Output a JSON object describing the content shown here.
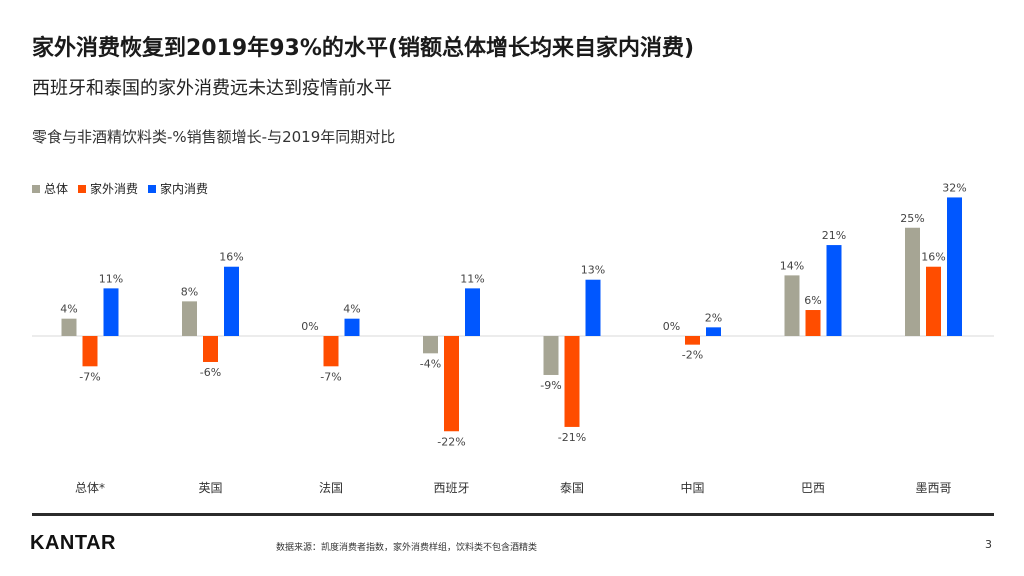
{
  "title": "家外消费恢复到2019年93%的水平(销额总体增长均来自家内消费)",
  "subtitle": "西班牙和泰国的家外消费远未达到疫情前水平",
  "footer": {
    "logo": "KANTAR",
    "source": "数据来源：凯度消费者指数，家外消费样组，饮料类不包含酒精类",
    "page": "3"
  },
  "chart_data": {
    "type": "bar",
    "title": "零食与非酒精饮料类-%销售额增长-与2019年同期对比",
    "legend_position": "top-left",
    "categories": [
      "总体*",
      "英国",
      "法国",
      "西班牙",
      "泰国",
      "中国",
      "巴西",
      "墨西哥"
    ],
    "series": [
      {
        "name": "总体",
        "color": "#a6a594",
        "values": [
          4,
          8,
          0,
          -4,
          -9,
          0,
          14,
          25
        ]
      },
      {
        "name": "家外消费",
        "color": "#ff4d00",
        "values": [
          -7,
          -6,
          -7,
          -22,
          -21,
          -2,
          6,
          16
        ]
      },
      {
        "name": "家内消费",
        "color": "#0057ff",
        "values": [
          11,
          16,
          4,
          11,
          13,
          2,
          21,
          32
        ]
      }
    ],
    "value_suffix": "%",
    "ylim": [
      -22,
      32
    ],
    "grid": false
  }
}
